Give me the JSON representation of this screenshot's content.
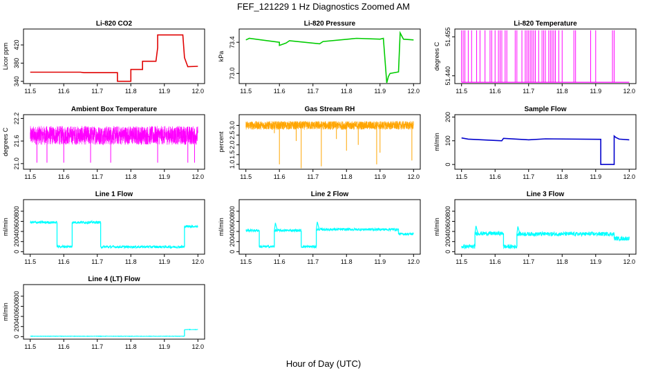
{
  "figure": {
    "title": "FEF_121229  1 Hz Diagnostics Zoomed AM",
    "xlabel": "Hour of Day (UTC)"
  },
  "chart_data": [
    {
      "id": "co2",
      "type": "line",
      "title": "Li-820 CO2",
      "ylabel": "Licor ppm",
      "color": "#e00000",
      "xlim": [
        11.5,
        12.0
      ],
      "ylim": [
        335,
        455
      ],
      "xticks": [
        "11.5",
        "11.6",
        "11.7",
        "11.8",
        "11.9",
        "12.0"
      ],
      "yticks": [
        "340",
        "380",
        "420"
      ],
      "series": [
        {
          "name": "CO2",
          "x": [
            11.5,
            11.65,
            11.66,
            11.76,
            11.76,
            11.8,
            11.8,
            11.835,
            11.835,
            11.875,
            11.875,
            11.88,
            11.88,
            11.955,
            11.96,
            11.97,
            12.0
          ],
          "y": [
            360,
            360,
            359,
            359,
            340,
            340,
            366,
            366,
            384,
            384,
            384,
            414,
            442,
            442,
            392,
            372,
            373
          ]
        }
      ]
    },
    {
      "id": "pressure",
      "type": "line",
      "title": "Li-820 Pressure",
      "ylabel": "kPa",
      "color": "#00cc00",
      "xlim": [
        11.5,
        12.0
      ],
      "ylim": [
        72.87,
        73.57
      ],
      "xticks": [
        "11.5",
        "11.6",
        "11.7",
        "11.8",
        "11.9",
        "12.0"
      ],
      "yticks": [
        "73.0",
        "73.4"
      ],
      "series": [
        {
          "name": "Pressure",
          "x": [
            11.5,
            11.51,
            11.6,
            11.6,
            11.62,
            11.63,
            11.72,
            11.73,
            11.83,
            11.9,
            11.91,
            11.92,
            11.925,
            11.93,
            11.955,
            11.96,
            11.965,
            11.97,
            12.0
          ],
          "y": [
            73.43,
            73.45,
            73.4,
            73.36,
            73.39,
            73.42,
            73.38,
            73.41,
            73.45,
            73.44,
            73.45,
            72.88,
            72.96,
            73.0,
            73.02,
            73.52,
            73.48,
            73.44,
            73.43
          ]
        }
      ]
    },
    {
      "id": "temperature",
      "type": "line",
      "title": "Li-820 Temperature",
      "ylabel": "degrees C",
      "color": "#ff00ff",
      "xlim": [
        11.5,
        12.0
      ],
      "ylim": [
        51.437,
        51.458
      ],
      "xticks": [
        "11.5",
        "11.6",
        "11.7",
        "11.8",
        "11.9",
        "12.0"
      ],
      "yticks": [
        "51.440",
        "51.455"
      ],
      "base": 51.4375,
      "spike": 51.4575,
      "spikes_x": [
        11.5,
        11.505,
        11.51,
        11.52,
        11.53,
        11.545,
        11.555,
        11.57,
        11.585,
        11.59,
        11.6,
        11.61,
        11.615,
        11.62,
        11.63,
        11.635,
        11.66,
        11.665,
        11.68,
        11.69,
        11.695,
        11.7,
        11.705,
        11.71,
        11.715,
        11.72,
        11.73,
        11.74,
        11.745,
        11.75,
        11.76,
        11.765,
        11.77,
        11.775,
        11.78,
        11.79,
        11.8,
        11.835,
        11.84,
        11.885,
        11.9,
        11.95,
        11.955
      ]
    },
    {
      "id": "ambient",
      "type": "line",
      "title": "Ambient Box Temperature",
      "ylabel": "degrees C",
      "color": "#ff00ff",
      "xlim": [
        11.5,
        12.0
      ],
      "ylim": [
        20.85,
        22.3
      ],
      "xticks": [
        "11.5",
        "11.6",
        "11.7",
        "11.8",
        "11.9",
        "12.0"
      ],
      "yticks": [
        "21.0",
        "21.6",
        "22.2"
      ],
      "center": 21.75,
      "spread": 0.25,
      "dips": [
        11.52,
        11.55,
        11.6,
        11.68,
        11.74,
        11.88,
        11.97,
        11.99
      ]
    },
    {
      "id": "rh",
      "type": "line",
      "title": "Gas Stream RH",
      "ylabel": "percent",
      "color": "#ffa500",
      "xlim": [
        11.5,
        12.0
      ],
      "ylim": [
        0.75,
        3.55
      ],
      "xticks": [
        "11.5",
        "11.6",
        "11.7",
        "11.8",
        "11.9",
        "12.0"
      ],
      "yticks": [
        "1.0",
        "1.5",
        "2.0",
        "2.5",
        "3.0"
      ],
      "center": 3.0,
      "spread": 0.22,
      "dips": [
        [
          11.6,
          1.0
        ],
        [
          11.665,
          0.8
        ],
        [
          11.725,
          0.9
        ],
        [
          11.8,
          1.7
        ],
        [
          11.835,
          2.0
        ],
        [
          11.89,
          1.0
        ],
        [
          11.9,
          1.6
        ],
        [
          11.585,
          2.6
        ],
        [
          11.65,
          2.2
        ],
        [
          11.77,
          2.3
        ],
        [
          11.995,
          1.2
        ]
      ]
    },
    {
      "id": "sample_flow",
      "type": "line",
      "title": "Sample Flow",
      "ylabel": "ml/min",
      "color": "#0000cc",
      "xlim": [
        11.5,
        12.0
      ],
      "ylim": [
        -20,
        210
      ],
      "xticks": [
        "11.5",
        "11.6",
        "11.7",
        "11.8",
        "11.9",
        "12.0"
      ],
      "yticks": [
        "0",
        "100",
        "200"
      ],
      "series": [
        {
          "name": "Sample Flow",
          "x": [
            11.5,
            11.52,
            11.62,
            11.625,
            11.7,
            11.75,
            11.91,
            11.915,
            11.915,
            11.955,
            11.955,
            11.96,
            11.97,
            12.0
          ],
          "y": [
            112,
            107,
            100,
            110,
            104,
            108,
            106,
            106,
            0,
            0,
            120,
            114,
            107,
            104
          ]
        }
      ]
    },
    {
      "id": "line1",
      "type": "line",
      "title": "Line 1 Flow",
      "ylabel": "ml/min",
      "color": "#00ffff",
      "xlim": [
        11.5,
        12.0
      ],
      "ylim": [
        -50,
        1030
      ],
      "xticks": [
        "11.5",
        "11.6",
        "11.7",
        "11.8",
        "11.9",
        "12.0"
      ],
      "yticks": [
        "0",
        "200",
        "400",
        "600",
        "800"
      ],
      "noise": 25,
      "segments": [
        [
          11.5,
          11.58,
          580
        ],
        [
          11.58,
          11.625,
          100
        ],
        [
          11.625,
          11.71,
          580
        ],
        [
          11.71,
          11.96,
          95
        ],
        [
          11.96,
          12.0,
          500
        ]
      ]
    },
    {
      "id": "line2",
      "type": "line",
      "title": "Line 2 Flow",
      "ylabel": "ml/min",
      "color": "#00ffff",
      "xlim": [
        11.5,
        12.0
      ],
      "ylim": [
        -50,
        1030
      ],
      "xticks": [
        "11.5",
        "11.6",
        "11.7",
        "11.8",
        "11.9",
        "12.0"
      ],
      "yticks": [
        "0",
        "200",
        "400",
        "600",
        "800"
      ],
      "noise": 25,
      "segments": [
        [
          11.5,
          11.54,
          420
        ],
        [
          11.54,
          11.585,
          100
        ],
        [
          11.585,
          11.665,
          420
        ],
        [
          11.665,
          11.71,
          100
        ],
        [
          11.71,
          11.955,
          440
        ],
        [
          11.955,
          12.0,
          350
        ]
      ]
    },
    {
      "id": "line3",
      "type": "line",
      "title": "Line 3 Flow",
      "ylabel": "ml/min",
      "color": "#00ffff",
      "xlim": [
        11.5,
        12.0
      ],
      "ylim": [
        -50,
        1030
      ],
      "xticks": [
        "11.5",
        "11.6",
        "11.7",
        "11.8",
        "11.9",
        "12.0"
      ],
      "yticks": [
        "0",
        "200",
        "400",
        "600",
        "800"
      ],
      "noise": 40,
      "segments": [
        [
          11.5,
          11.54,
          100
        ],
        [
          11.54,
          11.625,
          360
        ],
        [
          11.625,
          11.665,
          100
        ],
        [
          11.665,
          11.955,
          350
        ],
        [
          11.955,
          12.0,
          260
        ]
      ]
    },
    {
      "id": "line4",
      "type": "line",
      "title": "Line 4 (LT) Flow",
      "ylabel": "ml/min",
      "color": "#00ffff",
      "xlim": [
        11.5,
        12.0
      ],
      "ylim": [
        -50,
        1030
      ],
      "xticks": [
        "11.5",
        "11.6",
        "11.7",
        "11.8",
        "11.9",
        "12.0"
      ],
      "yticks": [
        "0",
        "200",
        "400",
        "600",
        "800"
      ],
      "noise": 4,
      "segments": [
        [
          11.5,
          11.96,
          8
        ],
        [
          11.96,
          12.0,
          140
        ]
      ]
    }
  ]
}
